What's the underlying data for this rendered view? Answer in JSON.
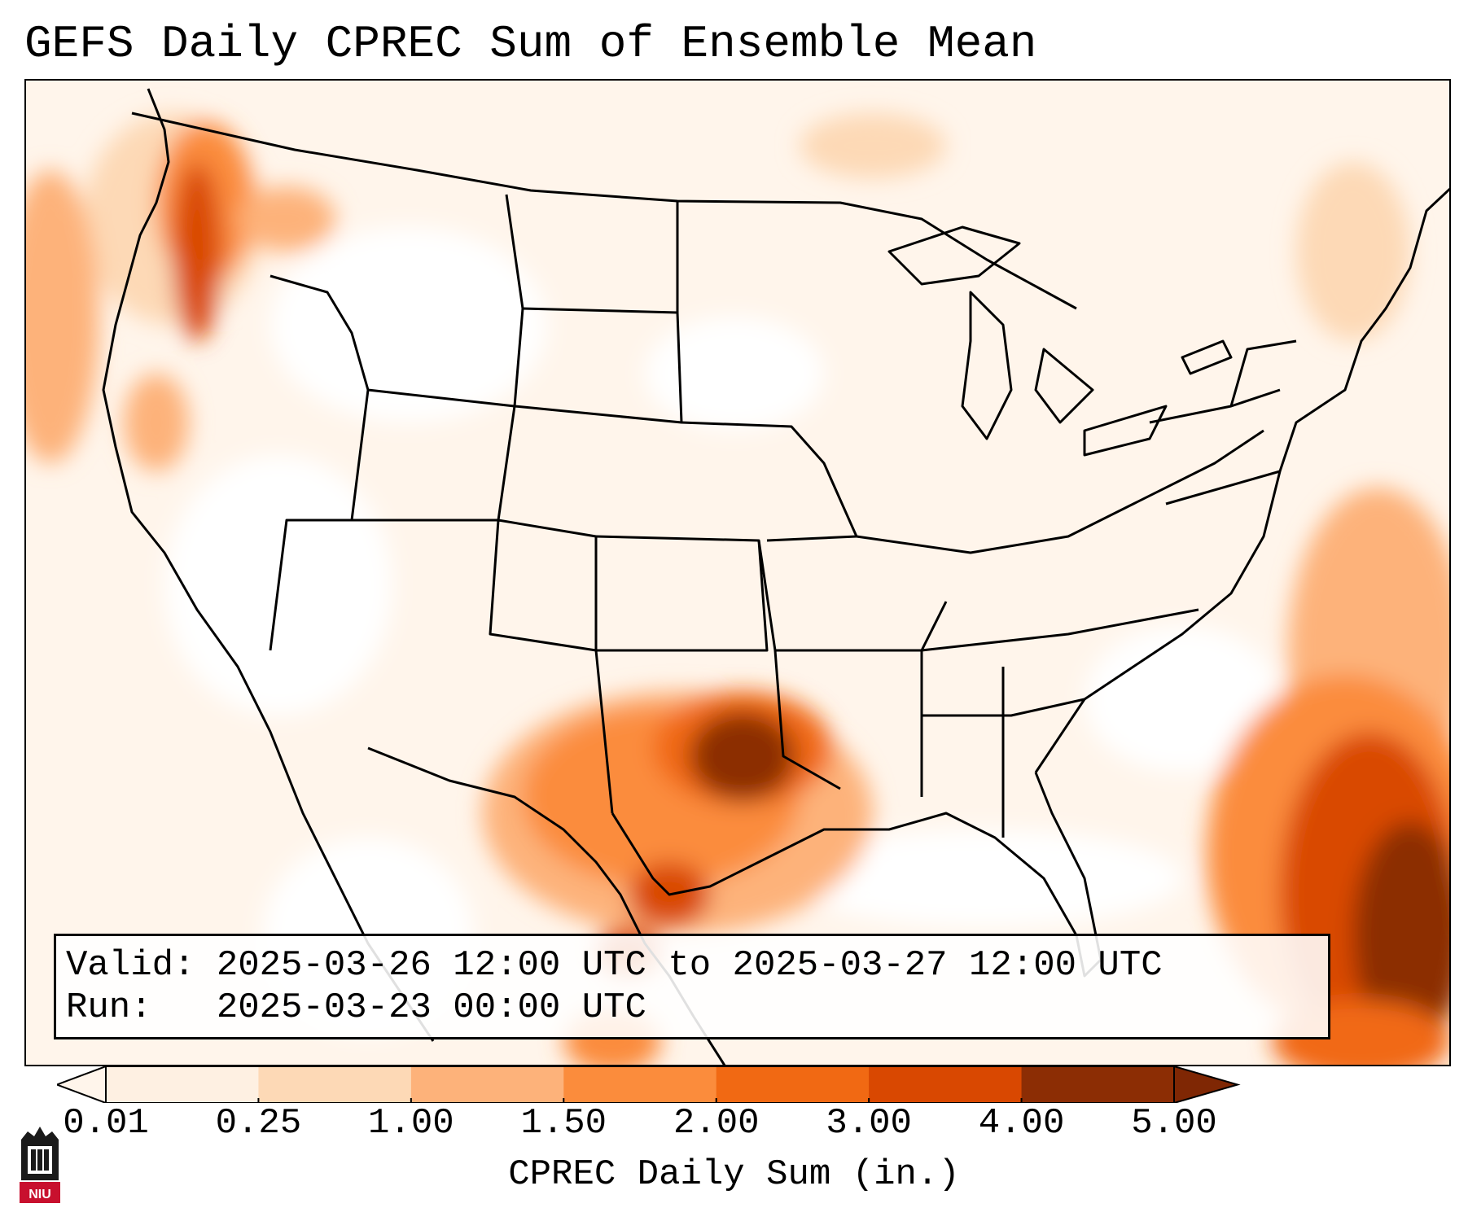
{
  "title": "GEFS Daily CPREC Sum of Ensemble Mean",
  "info": {
    "valid_label": "Valid:",
    "valid_value": "2025-03-26 12:00 UTC to 2025-03-27 12:00 UTC",
    "run_label": "Run:",
    "run_value": "2025-03-23 00:00 UTC"
  },
  "colorbar": {
    "label": "CPREC Daily Sum (in.)",
    "ticks": [
      "0.01",
      "0.25",
      "1.00",
      "1.50",
      "2.00",
      "3.00",
      "4.00",
      "5.00"
    ],
    "colors": [
      "#fef0e2",
      "#fdd9b6",
      "#fdb27a",
      "#fb8c3c",
      "#f16913",
      "#d94801",
      "#8c2d04"
    ],
    "under_color": "#fff5eb",
    "over_color": "#7f2704"
  },
  "logo": {
    "text": "NIU"
  }
}
